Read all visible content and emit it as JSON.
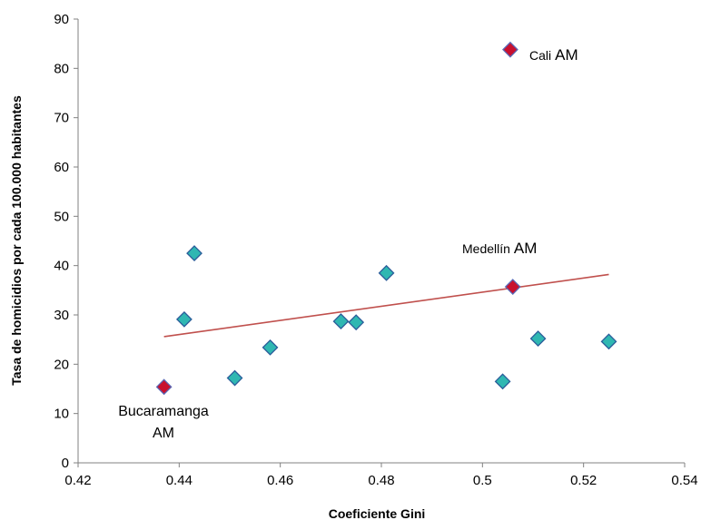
{
  "chart_data": {
    "type": "scatter",
    "xlabel": "Coeficiente Gini",
    "ylabel": "Tasa de homicidios por cada 100.000 habitantes",
    "xlim": [
      0.42,
      0.54
    ],
    "ylim": [
      0,
      90
    ],
    "x_ticks": [
      "0.42",
      "0.44",
      "0.46",
      "0.48",
      "0.5",
      "0.52",
      "0.54"
    ],
    "y_ticks": [
      "0",
      "10",
      "20",
      "30",
      "40",
      "50",
      "60",
      "70",
      "80",
      "90"
    ],
    "grid": false,
    "series": [
      {
        "points": [
          {
            "x": 0.441,
            "y": 29.1
          },
          {
            "x": 0.443,
            "y": 42.5
          },
          {
            "x": 0.451,
            "y": 17.2
          },
          {
            "x": 0.458,
            "y": 23.4
          },
          {
            "x": 0.472,
            "y": 28.7
          },
          {
            "x": 0.475,
            "y": 28.5
          },
          {
            "x": 0.481,
            "y": 38.5
          },
          {
            "x": 0.504,
            "y": 16.5
          },
          {
            "x": 0.511,
            "y": 25.2
          },
          {
            "x": 0.525,
            "y": 24.6
          }
        ]
      },
      {
        "points": [
          {
            "x": 0.437,
            "y": 15.4,
            "label": "Bucaramanga AM"
          },
          {
            "x": 0.506,
            "y": 35.7,
            "label": "Medellín AM"
          },
          {
            "x": 0.5055,
            "y": 83.8,
            "label": "Cali AM"
          }
        ]
      }
    ],
    "trendline": {
      "x": [
        0.437,
        0.525
      ],
      "y": [
        25.6,
        38.2
      ]
    },
    "annotations": {
      "bucaramanga_line1": "Bucaramanga",
      "bucaramanga_line2": "AM",
      "medellin_name": "Medellín",
      "medellin_suffix": "AM",
      "cali_name": "Cali",
      "cali_suffix": "AM"
    },
    "colors": {
      "teal_marker_fill": "#2FB7B2",
      "teal_marker_stroke": "#2A5C9A",
      "red_marker_fill": "#C8102E",
      "red_marker_stroke": "#5A68B5",
      "trendline": "#C0504D",
      "axis": "#808080"
    }
  }
}
